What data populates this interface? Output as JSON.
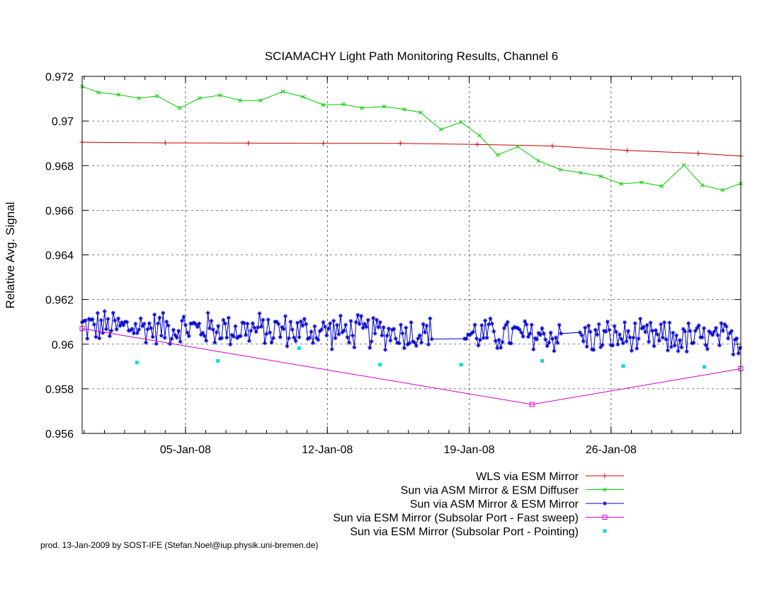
{
  "chart_data": {
    "type": "line",
    "title": "SCIAMACHY Light Path Monitoring Results, Channel 6",
    "ylabel": "Relative Avg. Signal",
    "xlabel": "",
    "x_unit": "days since 01-Jan-08",
    "xlim": [
      -1.1,
      31.4
    ],
    "ylim": [
      0.956,
      0.972
    ],
    "yticks": [
      0.956,
      0.958,
      0.96,
      0.962,
      0.964,
      0.966,
      0.968,
      0.97,
      0.972
    ],
    "ytick_labels": [
      "0.956",
      "0.958",
      "0.96",
      "0.962",
      "0.964",
      "0.966",
      "0.968",
      "0.97",
      "0.972"
    ],
    "xticks": [
      {
        "x": 4,
        "label": "05-Jan-08"
      },
      {
        "x": 11,
        "label": "12-Jan-08"
      },
      {
        "x": 18,
        "label": "19-Jan-08"
      },
      {
        "x": 25,
        "label": "26-Jan-08"
      }
    ],
    "grid": "dashed",
    "legend_position": "bottom-right",
    "footer": "prod. 13-Jan-2009 by SOST-IFE (Stefan.Noel@iup.physik.uni-bremen.de)",
    "series": [
      {
        "name": "WLS via ESM Mirror",
        "color": "#cc0000",
        "marker": "plus",
        "x": [
          -1.1,
          3.0,
          7.1,
          10.8,
          14.6,
          18.4,
          22.1,
          25.8,
          29.3,
          31.4
        ],
        "y": [
          0.96905,
          0.96902,
          0.96901,
          0.969,
          0.969,
          0.96895,
          0.96888,
          0.96868,
          0.96855,
          0.96843
        ]
      },
      {
        "name": "Sun via ASM Mirror & ESM Diffuser",
        "color": "#00cc00",
        "marker": "cross",
        "x": [
          -1.1,
          -0.3,
          0.7,
          1.7,
          2.6,
          3.7,
          4.7,
          5.7,
          6.7,
          7.7,
          8.8,
          9.8,
          10.8,
          11.8,
          12.7,
          13.8,
          14.8,
          15.6,
          16.6,
          17.6,
          18.5,
          19.4,
          20.4,
          21.4,
          22.5,
          23.5,
          24.5,
          25.5,
          26.5,
          27.5,
          28.6,
          29.5,
          30.5,
          31.4
        ],
        "y": [
          0.97155,
          0.97128,
          0.97118,
          0.97102,
          0.97112,
          0.97058,
          0.97102,
          0.97115,
          0.97092,
          0.97092,
          0.97132,
          0.97108,
          0.97072,
          0.97075,
          0.97058,
          0.97065,
          0.97052,
          0.97038,
          0.96962,
          0.96995,
          0.96935,
          0.96848,
          0.96885,
          0.96822,
          0.96782,
          0.96768,
          0.96752,
          0.96718,
          0.96725,
          0.96708,
          0.96802,
          0.96712,
          0.9669,
          0.9672
        ]
      },
      {
        "name": "Sun via ASM Mirror & ESM Mirror",
        "color": "#0000cc",
        "marker": "star",
        "x_start": -1.1,
        "x_end": 31.4,
        "center": 0.9608,
        "amplitude": 0.0008
      },
      {
        "name": "Sun via ESM Mirror (Subsolar Port - Fast sweep)",
        "color": "#cc00cc",
        "marker": "square",
        "x": [
          -1.1,
          21.1,
          31.4
        ],
        "y": [
          0.9607,
          0.9573,
          0.9589
        ]
      },
      {
        "name": "Sun via ESM Mirror (Subsolar Port - Pointing)",
        "color": "#00dddd",
        "marker": "dot",
        "x": [
          1.6,
          5.6,
          9.6,
          13.6,
          17.6,
          21.6,
          25.6,
          29.6
        ],
        "y": [
          0.95918,
          0.95925,
          0.95982,
          0.95908,
          0.95908,
          0.95925,
          0.95902,
          0.95898
        ]
      }
    ]
  }
}
